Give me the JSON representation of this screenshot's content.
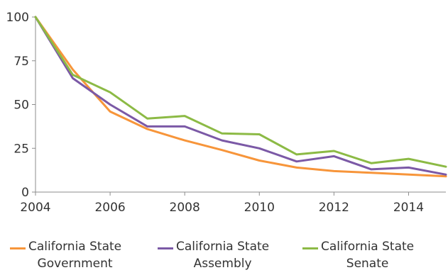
{
  "chart_data": {
    "type": "line",
    "title": "",
    "xlabel": "",
    "ylabel": "",
    "x": [
      2004,
      2005,
      2006,
      2007,
      2008,
      2009,
      2010,
      2011,
      2012,
      2013,
      2014,
      2015
    ],
    "xlim": [
      2004,
      2015
    ],
    "ylim": [
      0,
      100
    ],
    "x_ticks": [
      "2004",
      "2006",
      "2008",
      "2010",
      "2012",
      "2014"
    ],
    "y_ticks": [
      "0",
      "25",
      "50",
      "75",
      "100"
    ],
    "grid": false,
    "legend_position": "bottom",
    "series": [
      {
        "name": "California State Government",
        "color": "#f7953a",
        "values": [
          100,
          70,
          46,
          36,
          29.5,
          24,
          18,
          14,
          12,
          11,
          10,
          9
        ]
      },
      {
        "name": "California State Assembly",
        "color": "#7b59a6",
        "values": [
          100,
          65,
          50,
          37.5,
          37.5,
          29.5,
          25,
          17.5,
          20.5,
          13,
          14,
          10
        ]
      },
      {
        "name": "California State Senate",
        "color": "#8cba45",
        "values": [
          100,
          67,
          57,
          42,
          43.5,
          33.5,
          33,
          21.5,
          23.5,
          16.5,
          19,
          14.5
        ]
      }
    ]
  },
  "legend": {
    "items": [
      {
        "label": "California State\nGovernment",
        "color": "#f7953a"
      },
      {
        "label": "California State\nAssembly",
        "color": "#7b59a6"
      },
      {
        "label": "California State\nSenate",
        "color": "#8cba45"
      }
    ]
  }
}
